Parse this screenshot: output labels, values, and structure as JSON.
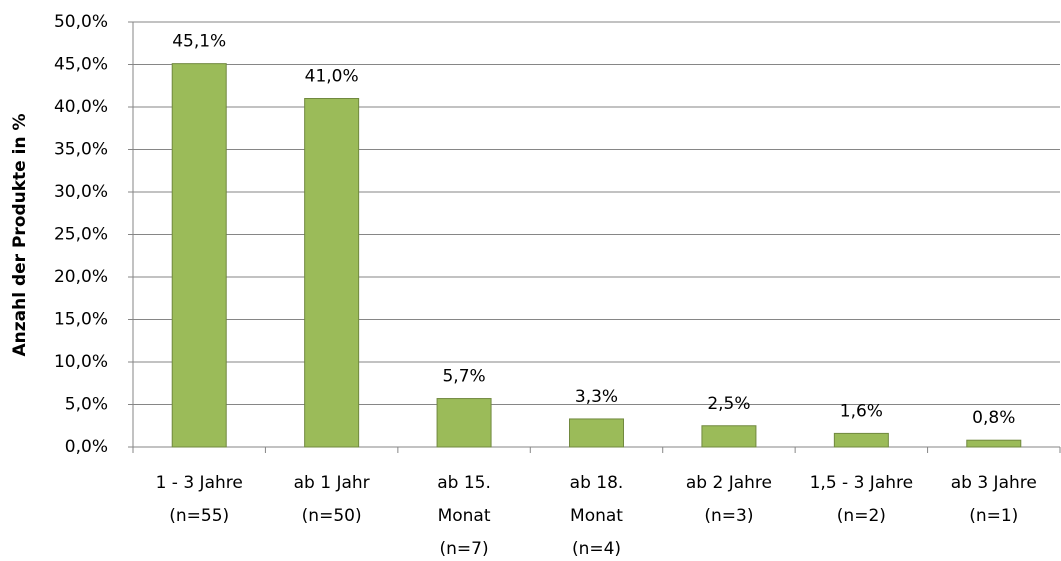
{
  "chart_data": {
    "type": "bar",
    "y_label": "Anzahl der Produkte in %",
    "categories": [
      [
        "1 - 3 Jahre",
        "(n=55)"
      ],
      [
        "ab 1 Jahr",
        "(n=50)"
      ],
      [
        "ab 15.",
        "Monat",
        "(n=7)"
      ],
      [
        "ab 18.",
        "Monat",
        "(n=4)"
      ],
      [
        "ab 2 Jahre",
        "(n=3)"
      ],
      [
        "1,5 - 3 Jahre",
        "(n=2)"
      ],
      [
        "ab 3 Jahre",
        "(n=1)"
      ]
    ],
    "values": [
      45.1,
      41.0,
      5.7,
      3.3,
      2.5,
      1.6,
      0.8
    ],
    "value_labels": [
      "45,1%",
      "41,0%",
      "5,7%",
      "3,3%",
      "2,5%",
      "1,6%",
      "0,8%"
    ],
    "color": "#9bbb59",
    "ylim": [
      0,
      50
    ],
    "yticks": [
      {
        "value": 0,
        "label": "0,0%"
      },
      {
        "value": 5,
        "label": "5,0%"
      },
      {
        "value": 10,
        "label": "10,0%"
      },
      {
        "value": 15,
        "label": "15,0%"
      },
      {
        "value": 20,
        "label": "20,0%"
      },
      {
        "value": 25,
        "label": "25,0%"
      },
      {
        "value": 30,
        "label": "30,0%"
      },
      {
        "value": 35,
        "label": "35,0%"
      },
      {
        "value": 40,
        "label": "40,0%"
      },
      {
        "value": 45,
        "label": "45,0%"
      },
      {
        "value": 50,
        "label": "50,0%"
      }
    ],
    "grid": true
  }
}
